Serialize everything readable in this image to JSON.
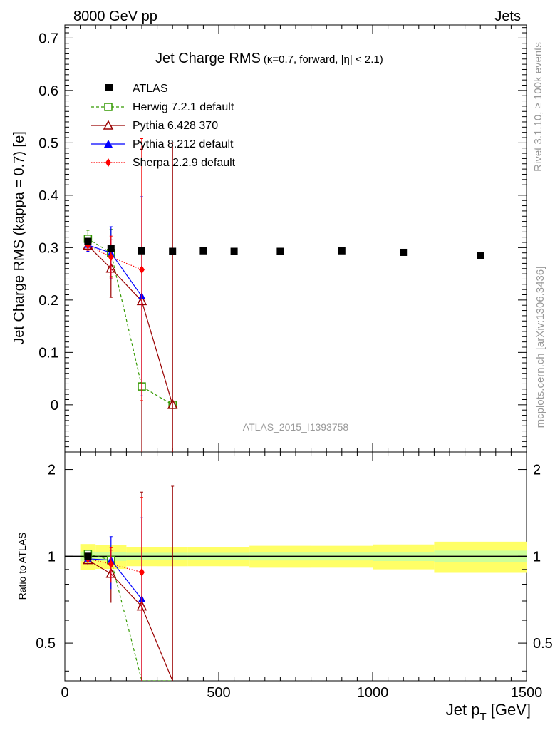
{
  "header": {
    "left": "8000 GeV pp",
    "right": "Jets"
  },
  "side_labels": {
    "top": "Rivet 3.1.10, ≥ 100k events",
    "bottom": "mcplots.cern.ch [arXiv:1306.3436]"
  },
  "watermark": "ATLAS_2015_I1393758",
  "chart_data": {
    "type": "scatter",
    "title": "Jet Charge RMS",
    "subtitle": "(κ=0.7, forward, |η| < 2.1)",
    "xlabel": "Jet p",
    "xlabel_sub": "T",
    "xlabel_unit": " [GeV]",
    "ylabel": "Jet Charge RMS (kappa = 0.7) [e]",
    "ratio_ylabel": "Ratio to ATLAS",
    "xlim": [
      0,
      1500
    ],
    "ylim": [
      -0.09,
      0.725
    ],
    "ratio_ylim": [
      0.37,
      2.3
    ],
    "x_ticks": [
      0,
      500,
      1000,
      1500
    ],
    "y_ticks": [
      0,
      0.1,
      0.2,
      0.3,
      0.4,
      0.5,
      0.6,
      0.7
    ],
    "ratio_ticks": [
      0.5,
      1,
      2
    ],
    "x_tick_labels": [
      "0",
      "500",
      "1000",
      "1500"
    ],
    "y_tick_labels": [
      "0",
      "0.1",
      "0.2",
      "0.3",
      "0.4",
      "0.5",
      "0.6",
      "0.7"
    ],
    "ratio_tick_labels": [
      "0.5",
      "1",
      "2"
    ],
    "legend_position": "top-left",
    "data": {
      "name": "ATLAS",
      "x": [
        75,
        150,
        250,
        350,
        450,
        550,
        700,
        900,
        1100,
        1350
      ],
      "y": [
        0.312,
        0.299,
        0.294,
        0.293,
        0.294,
        0.293,
        0.293,
        0.294,
        0.291,
        0.285
      ],
      "xerr": [
        25,
        50,
        50,
        50,
        50,
        50,
        100,
        100,
        100,
        150
      ],
      "band": [
        0.02,
        0.018,
        0.014,
        0.014,
        0.014,
        0.014,
        0.016,
        0.016,
        0.018,
        0.022
      ]
    },
    "series": [
      {
        "name": "Herwig 7.2.1 default",
        "color": "#339900",
        "marker": "open-square",
        "line": "dashed",
        "x": [
          75,
          150,
          250,
          350
        ],
        "y": [
          0.317,
          0.29,
          0.035,
          0.0
        ],
        "err": [
          0.016,
          0.045,
          0.0,
          0.0
        ],
        "ratio": [
          1.02,
          0.97,
          0.12,
          0.0
        ]
      },
      {
        "name": "Pythia 6.428 370",
        "color": "#990000",
        "marker": "open-triangle",
        "line": "solid",
        "x": [
          75,
          150,
          250,
          350
        ],
        "y": [
          0.304,
          0.26,
          0.198,
          0.0
        ],
        "err": [
          0.012,
          0.055,
          0.29,
          0.5
        ],
        "ratio": [
          0.97,
          0.87,
          0.67,
          0.0
        ],
        "ratio_err": [
          0.04,
          0.18,
          1.0,
          1.75
        ]
      },
      {
        "name": "Pythia 8.212 default",
        "color": "#0000ff",
        "marker": "filled-triangle",
        "line": "solid",
        "x": [
          75,
          150,
          250
        ],
        "y": [
          0.305,
          0.29,
          0.207
        ],
        "err": [
          0.012,
          0.05,
          0.19
        ],
        "ratio": [
          0.98,
          0.97,
          0.71
        ],
        "ratio_err": [
          0.04,
          0.2,
          0.65
        ]
      },
      {
        "name": "Sherpa 2.2.9 default",
        "color": "#ff0000",
        "marker": "filled-diamond",
        "line": "dotted",
        "x": [
          75,
          150,
          250
        ],
        "y": [
          0.305,
          0.282,
          0.258
        ],
        "err": [
          0.01,
          0.04,
          0.25
        ],
        "ratio": [
          0.98,
          0.94,
          0.88
        ],
        "ratio_err": [
          0.03,
          0.13,
          0.72
        ]
      }
    ]
  }
}
